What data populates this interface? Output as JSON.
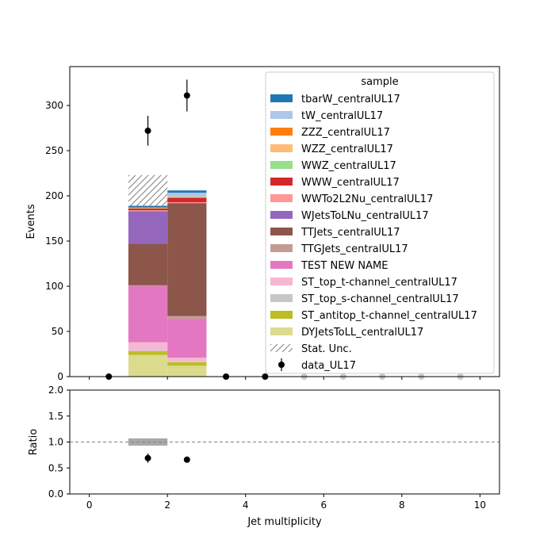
{
  "chart_data": [
    {
      "type": "bar",
      "stacked": true,
      "panel": "main",
      "ylabel": "Events",
      "xlim": [
        -0.5,
        10.5
      ],
      "ylim": [
        0,
        343
      ],
      "yticks": [
        0,
        50,
        100,
        150,
        200,
        250,
        300
      ],
      "bin_edges": [
        0,
        1,
        2,
        3,
        4,
        5,
        6,
        7,
        8,
        9,
        10
      ],
      "legend": {
        "title": "sample",
        "placement": "top-right"
      },
      "series": [
        {
          "name": "DYJetsToLL_centralUL17",
          "color": "#dbdb8d",
          "values": [
            0,
            24,
            12,
            0,
            0,
            0,
            0,
            0,
            0,
            0
          ]
        },
        {
          "name": "ST_antitop_t-channel_centralUL17",
          "color": "#bcbd22",
          "values": [
            0,
            4,
            4,
            0,
            0,
            0,
            0,
            0,
            0,
            0
          ]
        },
        {
          "name": "ST_top_s-channel_centralUL17",
          "color": "#c7c7c7",
          "values": [
            0,
            1,
            0.5,
            0,
            0,
            0,
            0,
            0,
            0,
            0
          ]
        },
        {
          "name": "ST_top_t-channel_centralUL17",
          "color": "#f7b6d2",
          "values": [
            0,
            9,
            4.5,
            0,
            0,
            0,
            0,
            0,
            0,
            0
          ]
        },
        {
          "name": "TEST NEW NAME",
          "color": "#e377c2",
          "values": [
            0,
            62,
            43,
            0,
            0,
            0,
            0,
            0,
            0,
            0
          ]
        },
        {
          "name": "TTGJets_centralUL17",
          "color": "#c49c94",
          "values": [
            0,
            1,
            3,
            0,
            0,
            0,
            0,
            0,
            0,
            0
          ]
        },
        {
          "name": "TTJets_centralUL17",
          "color": "#8c564b",
          "values": [
            0,
            46,
            125,
            0,
            0,
            0,
            0,
            0,
            0,
            0
          ]
        },
        {
          "name": "WJetsToLNu_centralUL17",
          "color": "#9467bd",
          "values": [
            0,
            36,
            0,
            0,
            0,
            0,
            0,
            0,
            0,
            0
          ]
        },
        {
          "name": "WWTo2L2Nu_centralUL17",
          "color": "#ff9896",
          "values": [
            0,
            1,
            1,
            0,
            0,
            0,
            0,
            0,
            0,
            0
          ]
        },
        {
          "name": "WWW_centralUL17",
          "color": "#d62728",
          "values": [
            0,
            2,
            5,
            0,
            0,
            0,
            0,
            0,
            0,
            0
          ]
        },
        {
          "name": "WWZ_centralUL17",
          "color": "#98df8a",
          "values": [
            0,
            0.5,
            0.5,
            0,
            0,
            0,
            0,
            0,
            0,
            0
          ]
        },
        {
          "name": "WZZ_centralUL17",
          "color": "#ffbb78",
          "values": [
            0,
            0.3,
            0.5,
            0,
            0,
            0,
            0,
            0,
            0,
            0
          ]
        },
        {
          "name": "ZZZ_centralUL17",
          "color": "#ff7f0e",
          "values": [
            0,
            0.2,
            0.2,
            0,
            0,
            0,
            0,
            0,
            0,
            0
          ]
        },
        {
          "name": "tW_centralUL17",
          "color": "#aec7e8",
          "values": [
            0,
            0,
            4.3,
            0,
            0,
            0,
            0,
            0,
            0,
            0
          ]
        },
        {
          "name": "tbarW_centralUL17",
          "color": "#1f77b4",
          "values": [
            0,
            2,
            2.5,
            0,
            0,
            0,
            0,
            0,
            0,
            0
          ]
        }
      ],
      "stat_unc": {
        "label": "Stat. Unc.",
        "low": [
          0,
          187,
          206,
          0,
          0,
          0,
          0,
          0,
          0,
          0
        ],
        "high": [
          0,
          223,
          206,
          0,
          0,
          0,
          0,
          0,
          0,
          0
        ]
      },
      "data": {
        "name": "data_UL17",
        "x": [
          0.5,
          1.5,
          2.5,
          3.5,
          4.5,
          5.5,
          6.5,
          7.5,
          8.5,
          9.5
        ],
        "y": [
          0,
          272,
          311,
          0,
          0,
          0,
          0,
          0,
          0,
          0
        ],
        "yerr": [
          0,
          16.5,
          17.6,
          0,
          0,
          0,
          0,
          0,
          0,
          0
        ]
      },
      "legend_order": [
        "tbarW_centralUL17",
        "tW_centralUL17",
        "ZZZ_centralUL17",
        "WZZ_centralUL17",
        "WWZ_centralUL17",
        "WWW_centralUL17",
        "WWTo2L2Nu_centralUL17",
        "WJetsToLNu_centralUL17",
        "TTJets_centralUL17",
        "TTGJets_centralUL17",
        "TEST NEW NAME",
        "ST_top_t-channel_centralUL17",
        "ST_top_s-channel_centralUL17",
        "ST_antitop_t-channel_centralUL17",
        "DYJetsToLL_centralUL17",
        "Stat. Unc.",
        "data_UL17"
      ]
    },
    {
      "type": "scatter",
      "panel": "ratio",
      "xlabel": "Jet multiplicity",
      "ylabel": "Ratio",
      "xlim": [
        -0.5,
        10.5
      ],
      "ylim": [
        0,
        2
      ],
      "xticks": [
        0,
        2,
        4,
        6,
        8,
        10
      ],
      "yticks": [
        "0.0",
        "0.5",
        "1.0",
        "1.5",
        "2.0"
      ],
      "reference_line": 1.0,
      "unc_band": {
        "bins": [
          [
            1,
            2
          ]
        ],
        "low": [
          0.93
        ],
        "high": [
          1.07
        ]
      },
      "points": {
        "x": [
          1.5,
          2.5
        ],
        "y": [
          0.69,
          0.66
        ],
        "yerr": [
          0.09,
          0.0
        ]
      }
    }
  ]
}
